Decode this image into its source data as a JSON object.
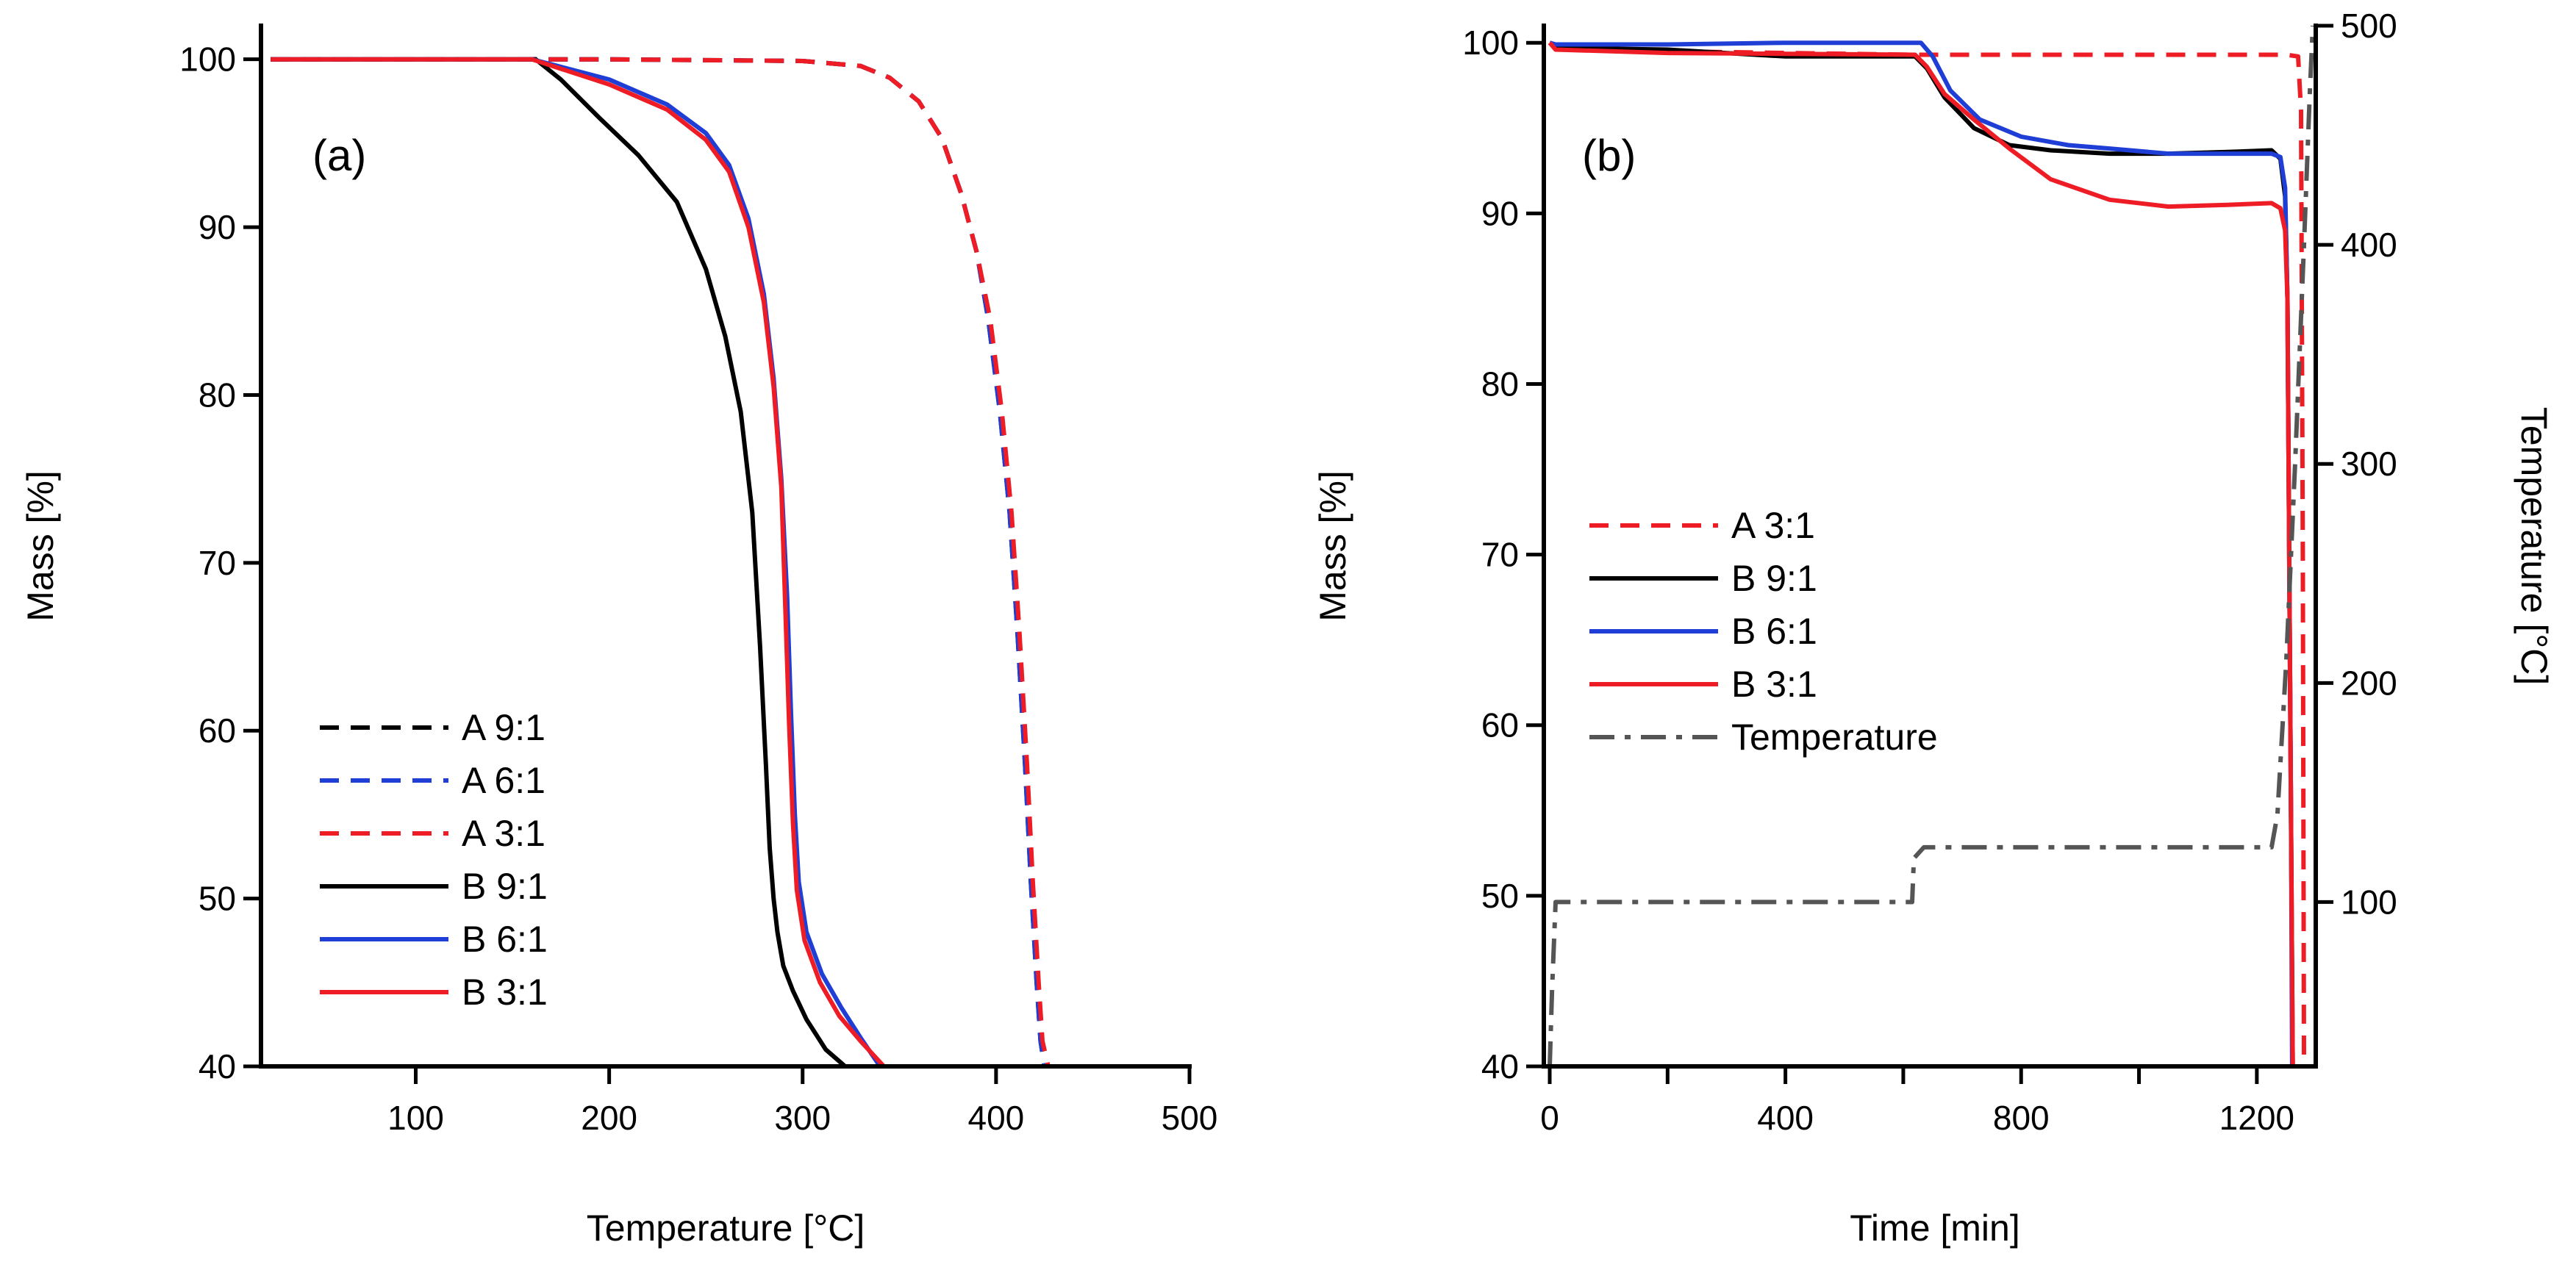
{
  "chart_data": [
    {
      "type": "line",
      "panel_label": "(a)",
      "xlabel": "Temperature [°C]",
      "ylabel": "Mass [%]",
      "xlim": [
        20,
        500
      ],
      "ylim": [
        40,
        102
      ],
      "xticks": [
        100,
        200,
        300,
        400,
        500
      ],
      "yticks": [
        40,
        50,
        60,
        70,
        80,
        90,
        100
      ],
      "legend_position": "bottom-left",
      "series": [
        {
          "name": "A 9:1",
          "color": "#000000",
          "dash": "dashed",
          "x": [
            25,
            100,
            200,
            300,
            330,
            345,
            360,
            372,
            382,
            390,
            396,
            402,
            407,
            411,
            415,
            418,
            421,
            423,
            425
          ],
          "y": [
            100,
            100,
            100,
            99.9,
            99.6,
            98.9,
            97.5,
            95.3,
            92,
            88.5,
            84.5,
            79,
            73,
            66,
            58,
            51,
            45,
            41.5,
            40
          ]
        },
        {
          "name": "A 6:1",
          "color": "#1f3ed6",
          "dash": "dashed",
          "x": [
            25,
            100,
            200,
            300,
            330,
            345,
            360,
            372,
            382,
            390,
            396,
            402,
            407,
            411,
            415,
            418,
            421,
            423,
            425
          ],
          "y": [
            100,
            100,
            100,
            99.9,
            99.6,
            98.9,
            97.5,
            95.3,
            92,
            88.5,
            84.5,
            79,
            73,
            66,
            58,
            51,
            45,
            41.5,
            40
          ]
        },
        {
          "name": "A 3:1",
          "color": "#ee1c25",
          "dash": "dashed",
          "x": [
            25,
            100,
            200,
            300,
            330,
            345,
            360,
            372,
            382,
            390,
            397,
            403,
            408,
            412,
            416,
            419,
            422,
            424,
            427
          ],
          "y": [
            100,
            100,
            100,
            99.9,
            99.6,
            98.9,
            97.5,
            95.3,
            92,
            88.5,
            84.5,
            79,
            73,
            66,
            58,
            51,
            45,
            41.5,
            40
          ]
        },
        {
          "name": "B 9:1",
          "color": "#000000",
          "dash": "solid",
          "x": [
            25,
            100,
            162,
            175,
            195,
            215,
            235,
            250,
            260,
            268,
            274,
            278,
            281,
            283,
            285,
            287,
            290,
            295,
            302,
            312,
            322
          ],
          "y": [
            100,
            100,
            100,
            98.8,
            96.5,
            94.3,
            91.5,
            87.5,
            83.5,
            79,
            73,
            65,
            58,
            53,
            50,
            48,
            46,
            44.5,
            42.8,
            41,
            40
          ]
        },
        {
          "name": "B 6:1",
          "color": "#1f3ed6",
          "dash": "solid",
          "x": [
            25,
            100,
            160,
            200,
            230,
            250,
            262,
            272,
            280,
            285,
            289,
            292,
            294,
            296,
            298,
            302,
            310,
            320,
            330,
            340
          ],
          "y": [
            100,
            100,
            100,
            98.8,
            97.3,
            95.6,
            93.7,
            90.5,
            86,
            81,
            75,
            68,
            61,
            55,
            51,
            48,
            45.5,
            43.5,
            41.7,
            40
          ]
        },
        {
          "name": "B 3:1",
          "color": "#ee1c25",
          "dash": "solid",
          "x": [
            25,
            100,
            160,
            200,
            230,
            250,
            262,
            272,
            280,
            285,
            289,
            291,
            293,
            295,
            297,
            301,
            309,
            319,
            330,
            342
          ],
          "y": [
            100,
            100,
            100,
            98.5,
            97,
            95.2,
            93.3,
            90,
            85.5,
            80.5,
            74.5,
            67.5,
            60.5,
            54.5,
            50.5,
            47.5,
            45,
            43,
            41.5,
            40
          ]
        }
      ]
    },
    {
      "type": "line",
      "panel_label": "(b)",
      "xlabel": "Time [min]",
      "ylabel": "Mass [%]",
      "y2label": "Temperature [°C]",
      "xlim": [
        -10,
        1300
      ],
      "ylim": [
        40,
        101
      ],
      "y2lim": [
        25,
        500
      ],
      "xticks": [
        0,
        400,
        800,
        1200
      ],
      "xminor_ticks": [
        200,
        600,
        1000
      ],
      "yticks": [
        40,
        50,
        60,
        70,
        80,
        90,
        100
      ],
      "y2ticks": [
        100,
        200,
        300,
        400,
        500
      ],
      "legend_position": "center-left",
      "series": [
        {
          "name": "A 3:1",
          "color": "#ee1c25",
          "dash": "dashed",
          "axis": "left",
          "x": [
            0,
            10,
            200,
            620,
            1000,
            1250,
            1270,
            1275,
            1278,
            1280
          ],
          "y": [
            100,
            99.8,
            99.5,
            99.3,
            99.3,
            99.3,
            99.2,
            96,
            70,
            40
          ]
        },
        {
          "name": "B 9:1",
          "color": "#000000",
          "dash": "solid",
          "axis": "left",
          "x": [
            0,
            10,
            200,
            400,
            620,
            640,
            670,
            720,
            780,
            850,
            950,
            1050,
            1150,
            1225,
            1240,
            1248,
            1252,
            1255,
            1258,
            1261
          ],
          "y": [
            100,
            99.7,
            99.6,
            99.2,
            99.2,
            98.5,
            96.8,
            95,
            94,
            93.7,
            93.5,
            93.5,
            93.6,
            93.7,
            93.2,
            91,
            85,
            70,
            55,
            40
          ]
        },
        {
          "name": "B 6:1",
          "color": "#1f3ed6",
          "dash": "solid",
          "axis": "left",
          "x": [
            0,
            10,
            200,
            400,
            630,
            650,
            680,
            730,
            800,
            880,
            950,
            1050,
            1150,
            1225,
            1240,
            1248,
            1252,
            1255,
            1258,
            1260
          ],
          "y": [
            100,
            99.9,
            99.9,
            100,
            100,
            99.2,
            97.2,
            95.5,
            94.5,
            94,
            93.8,
            93.5,
            93.5,
            93.5,
            93.3,
            91.5,
            85,
            70,
            55,
            40
          ]
        },
        {
          "name": "B 3:1",
          "color": "#ee1c25",
          "dash": "solid",
          "axis": "left",
          "x": [
            0,
            10,
            200,
            620,
            640,
            670,
            720,
            780,
            850,
            950,
            1050,
            1150,
            1225,
            1240,
            1248,
            1252,
            1255,
            1258,
            1261
          ],
          "y": [
            100,
            99.6,
            99.4,
            99.3,
            98.6,
            97,
            95.5,
            93.8,
            92,
            90.8,
            90.4,
            90.5,
            90.6,
            90.3,
            89,
            85,
            70,
            55,
            40
          ]
        },
        {
          "name": "Temperature",
          "color": "#555555",
          "dash": "dashdot",
          "axis": "right",
          "x": [
            0,
            4,
            10,
            30,
            615,
            618,
            635,
            1225,
            1235,
            1250,
            1265,
            1280,
            1290,
            1295
          ],
          "y": [
            25,
            60,
            100,
            100,
            100,
            120,
            125,
            125,
            140,
            210,
            300,
            400,
            470,
            500
          ]
        }
      ]
    }
  ]
}
